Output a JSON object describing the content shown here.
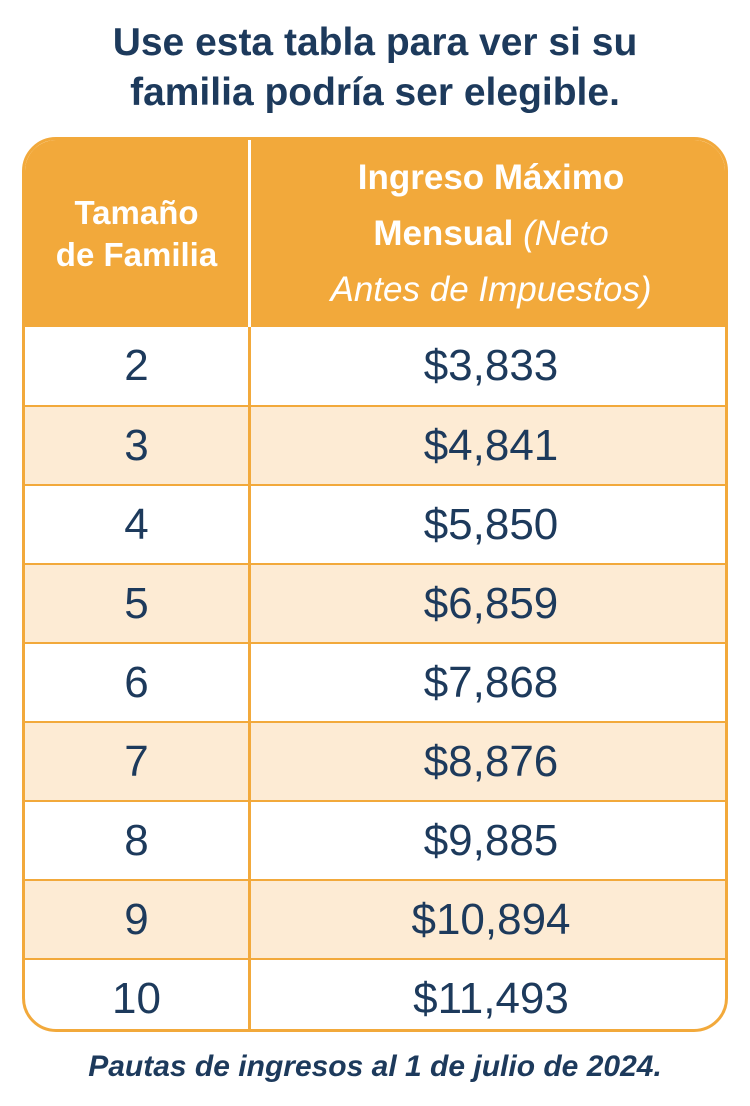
{
  "title": {
    "line1": "Use esta tabla para ver si su",
    "line2": "familia podría ser elegible."
  },
  "table": {
    "header": {
      "size_line1": "Tamaño",
      "size_line2": "de Familia",
      "income_line1": "Ingreso Máximo",
      "income_line2_bold": "Mensual",
      "income_line2_italic": "(Neto",
      "income_line3_italic": "Antes de Impuestos)"
    },
    "rows": [
      {
        "size": "2",
        "income": "$3,833"
      },
      {
        "size": "3",
        "income": "$4,841"
      },
      {
        "size": "4",
        "income": "$5,850"
      },
      {
        "size": "5",
        "income": "$6,859"
      },
      {
        "size": "6",
        "income": "$7,868"
      },
      {
        "size": "7",
        "income": "$8,876"
      },
      {
        "size": "8",
        "income": "$9,885"
      },
      {
        "size": "9",
        "income": "$10,894"
      },
      {
        "size": "10",
        "income": "$11,493"
      }
    ]
  },
  "footnote": "Pautas de ingresos al 1 de julio de 2024.",
  "colors": {
    "header_bg": "#f2a93b",
    "alt_row_bg": "#fdebd4",
    "text": "#1d3a5c"
  }
}
